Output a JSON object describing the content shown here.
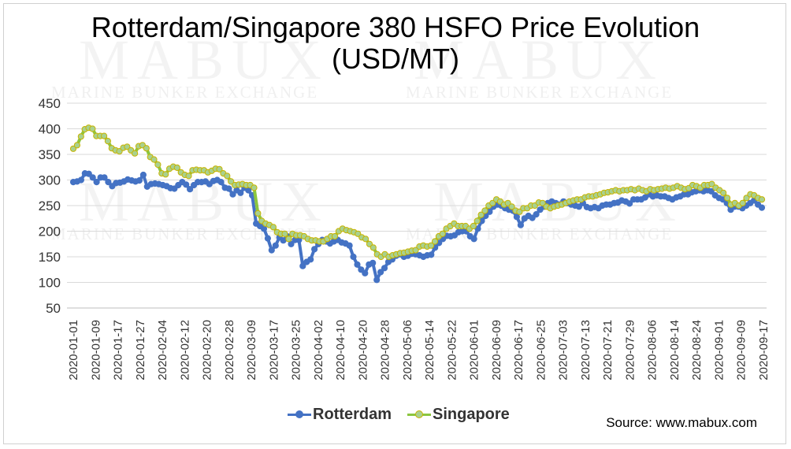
{
  "title_line1": "Rotterdam/Singapore 380 HSFO Price Evolution",
  "title_line2": "(USD/MT)",
  "source": "Source: www.mabux.com",
  "watermark": {
    "big": "MABUX",
    "small": "MARINE BUNKER EXCHANGE"
  },
  "colors": {
    "Rotterdam": "#4472C4",
    "Singapore": "#A9D18E",
    "Singapore_outline": "#C8B400",
    "grid": "#d9d9d9"
  },
  "chart_data": {
    "type": "line",
    "title": "Rotterdam/Singapore 380 HSFO Price Evolution (USD/MT)",
    "ylim": [
      50,
      450
    ],
    "yticks": [
      50,
      100,
      150,
      200,
      250,
      300,
      350,
      400,
      450
    ],
    "xtick_labels": [
      "2020-01-01",
      "2020-01-09",
      "2020-01-17",
      "2020-01-27",
      "2020-02-04",
      "2020-02-12",
      "2020-02-20",
      "2020-02-28",
      "2020-03-09",
      "2020-03-17",
      "2020-03-25",
      "2020-04-02",
      "2020-04-10",
      "2020-04-20",
      "2020-04-28",
      "2020-05-06",
      "2020-05-14",
      "2020-05-22",
      "2020-06-01",
      "2020-06-09",
      "2020-06-17",
      "2020-06-25",
      "2020-07-03",
      "2020-07-13",
      "2020-07-21",
      "2020-07-29",
      "2020-08-06",
      "2020-08-14",
      "2020-08-24",
      "2020-09-01",
      "2020-09-09",
      "2020-09-17"
    ],
    "grid": true,
    "legend": "bottom-center",
    "series": [
      {
        "name": "Rotterdam",
        "values": [
          296,
          297,
          300,
          313,
          312,
          305,
          296,
          305,
          305,
          296,
          288,
          294,
          295,
          297,
          301,
          299,
          297,
          299,
          310,
          287,
          292,
          293,
          292,
          290,
          288,
          284,
          283,
          290,
          296,
          291,
          282,
          290,
          296,
          296,
          297,
          292,
          298,
          300,
          296,
          285,
          283,
          272,
          280,
          275,
          285,
          280,
          270,
          215,
          210,
          205,
          186,
          163,
          172,
          188,
          182,
          190,
          175,
          183,
          183,
          132,
          140,
          145,
          165,
          175,
          183,
          180,
          176,
          180,
          183,
          178,
          176,
          172,
          150,
          135,
          125,
          118,
          135,
          138,
          105,
          120,
          128,
          140,
          145,
          152,
          155,
          150,
          152,
          156,
          155,
          153,
          150,
          153,
          154,
          168,
          177,
          185,
          191,
          190,
          192,
          198,
          200,
          200,
          190,
          185,
          205,
          220,
          230,
          238,
          248,
          252,
          250,
          245,
          242,
          240,
          228,
          212,
          225,
          230,
          226,
          233,
          242,
          248,
          255,
          258,
          255,
          252,
          258,
          255,
          252,
          250,
          248,
          255,
          247,
          245,
          247,
          245,
          250,
          252,
          252,
          255,
          256,
          260,
          258,
          254,
          262,
          262,
          262,
          266,
          272,
          268,
          270,
          268,
          268,
          265,
          262,
          266,
          268,
          272,
          272,
          276,
          278,
          280,
          278,
          280,
          278,
          270,
          265,
          262,
          255,
          242,
          248,
          248,
          245,
          250,
          255,
          260,
          252,
          246
        ]
      },
      {
        "name": "Singapore",
        "values": [
          361,
          368,
          385,
          399,
          402,
          400,
          386,
          386,
          386,
          376,
          362,
          358,
          356,
          363,
          365,
          358,
          352,
          366,
          368,
          362,
          345,
          340,
          330,
          313,
          311,
          322,
          326,
          324,
          315,
          310,
          308,
          319,
          320,
          319,
          319,
          315,
          318,
          322,
          321,
          313,
          308,
          297,
          290,
          291,
          292,
          290,
          290,
          285,
          235,
          220,
          215,
          212,
          208,
          198,
          195,
          195,
          185,
          195,
          192,
          192,
          190,
          185,
          182,
          182,
          180,
          180,
          185,
          190,
          190,
          200,
          205,
          202,
          200,
          198,
          195,
          188,
          185,
          175,
          168,
          155,
          150,
          155,
          150,
          153,
          155,
          157,
          158,
          160,
          162,
          163,
          170,
          172,
          170,
          172,
          180,
          190,
          195,
          205,
          210,
          215,
          210,
          210,
          210,
          205,
          210,
          220,
          232,
          240,
          250,
          255,
          262,
          258,
          252,
          255,
          248,
          240,
          238,
          245,
          245,
          250,
          250,
          256,
          255,
          248,
          245,
          248,
          250,
          252,
          255,
          258,
          260,
          262,
          262,
          266,
          268,
          268,
          270,
          272,
          275,
          276,
          278,
          280,
          278,
          280,
          280,
          282,
          280,
          283,
          280,
          278,
          282,
          280,
          282,
          283,
          285,
          283,
          285,
          288,
          285,
          282,
          284,
          290,
          288,
          285,
          290,
          290,
          292,
          285,
          280,
          275,
          265,
          252,
          255,
          250,
          255,
          265,
          272,
          270,
          265,
          262
        ]
      }
    ]
  }
}
